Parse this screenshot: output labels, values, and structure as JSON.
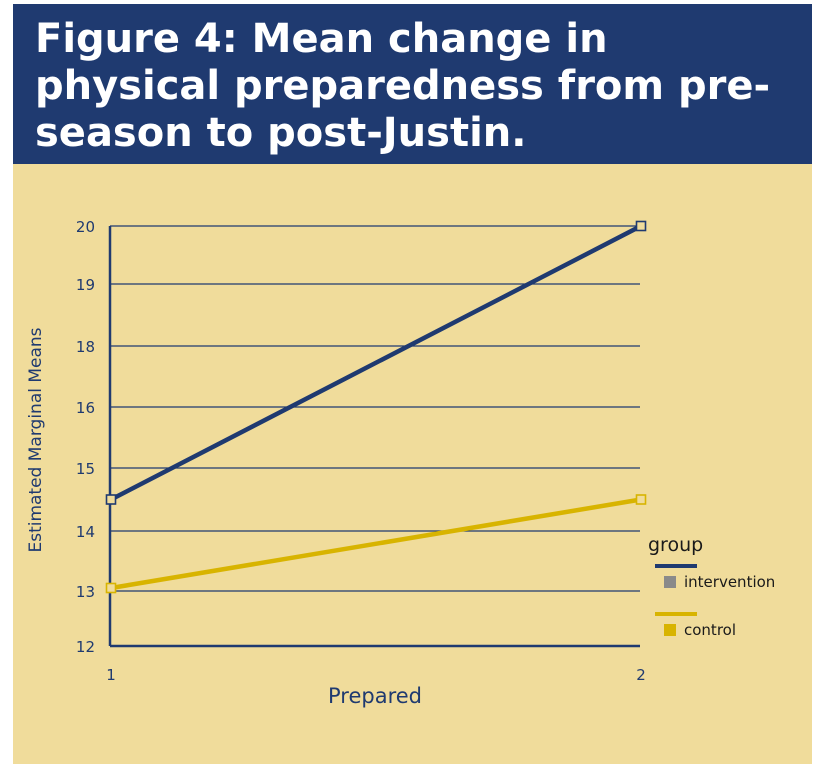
{
  "title": "Figure 4: Mean change in physical preparedness from pre-season to post-Justin.",
  "colors": {
    "header_bg": "#1f3a70",
    "panel_bg": "#f0dc9b",
    "intervention": "#1f3a70",
    "control": "#d8b400",
    "intervention_swatch": "#8a8a8a"
  },
  "chart_data": {
    "type": "line",
    "title": "Figure 4: Mean change in physical preparedness from pre-season to post-Justin.",
    "xlabel": "Prepared",
    "ylabel": "Estimated Marginal Means",
    "x": [
      1,
      2
    ],
    "x_tick_labels": [
      "1",
      "2"
    ],
    "y_tick_labels": [
      "12",
      "13",
      "14",
      "15",
      "16",
      "18",
      "19",
      "20"
    ],
    "grid": true,
    "legend_title": "group",
    "legend_position": "right",
    "series": [
      {
        "name": "intervention",
        "values": [
          14.5,
          20
        ],
        "color": "#1f3a70",
        "marker": "square-open"
      },
      {
        "name": "control",
        "values": [
          13.05,
          14.5
        ],
        "color": "#d8b400",
        "marker": "square-open"
      }
    ]
  }
}
